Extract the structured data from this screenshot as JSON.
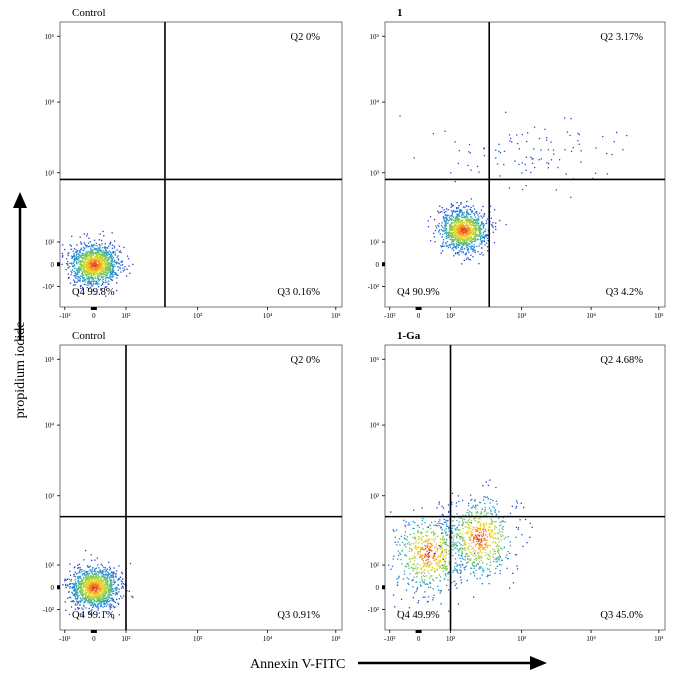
{
  "axes": {
    "ylabel": "propidium iodide",
    "xlabel": "Annexin V-FITC"
  },
  "chart_data": [
    {
      "type": "scatter",
      "title": "Control",
      "xscale": "biexponential",
      "yscale": "biexponential",
      "x_ticks": [
        "-10²",
        "0",
        "10²",
        "10³",
        "10⁴",
        "10⁵"
      ],
      "y_ticks": [
        "10⁵",
        "10⁴",
        "10³",
        "10²",
        "0",
        "-10²"
      ],
      "gate": {
        "x": 350,
        "y": 800
      },
      "quadrants": {
        "Q2": "Q2 0%",
        "Q3": "Q3 0.16%",
        "Q4": "Q4 99.8%"
      },
      "populations": [
        {
          "x": 0,
          "y": 0,
          "share": 1.0
        }
      ]
    },
    {
      "type": "scatter",
      "title": "1",
      "xscale": "biexponential",
      "yscale": "biexponential",
      "x_ticks": [
        "-10²",
        "0",
        "10²",
        "10³",
        "10⁴",
        "10⁵"
      ],
      "y_ticks": [
        "10⁵",
        "10⁴",
        "10³",
        "10²",
        "0",
        "-10²"
      ],
      "gate": {
        "x": 350,
        "y": 800
      },
      "quadrants": {
        "Q2": "Q2 3.17%",
        "Q3": "Q3 4.2%",
        "Q4": "Q4 90.9%"
      },
      "populations": [
        {
          "x": 150,
          "y": 150,
          "share": 0.92
        },
        {
          "x": 1500,
          "y": 2000,
          "share": 0.08
        }
      ]
    },
    {
      "type": "scatter",
      "title": "Control",
      "xscale": "biexponential",
      "yscale": "biexponential",
      "x_ticks": [
        "-10²",
        "0",
        "10²",
        "10³",
        "10⁴",
        "10⁵"
      ],
      "y_ticks": [
        "10⁵",
        "10⁴",
        "10³",
        "10²",
        "0",
        "-10²"
      ],
      "gate": {
        "x": 100,
        "y": 500
      },
      "quadrants": {
        "Q2": "Q2 0%",
        "Q3": "Q3 0.91%",
        "Q4": "Q4 99.1%"
      },
      "populations": [
        {
          "x": 0,
          "y": 0,
          "share": 1.0
        }
      ]
    },
    {
      "type": "scatter",
      "title": "1-Ga",
      "xscale": "biexponential",
      "yscale": "biexponential",
      "x_ticks": [
        "-10²",
        "0",
        "10²",
        "10³",
        "10⁴",
        "10⁵"
      ],
      "y_ticks": [
        "10⁵",
        "10⁴",
        "10³",
        "10²",
        "0",
        "-10²"
      ],
      "gate": {
        "x": 100,
        "y": 500
      },
      "quadrants": {
        "Q2": "Q2 4.68%",
        "Q3": "Q3 45.0%",
        "Q4": "Q4 49.9%"
      },
      "populations": [
        {
          "x": 30,
          "y": 150,
          "share": 0.5
        },
        {
          "x": 250,
          "y": 250,
          "share": 0.5
        }
      ]
    }
  ]
}
